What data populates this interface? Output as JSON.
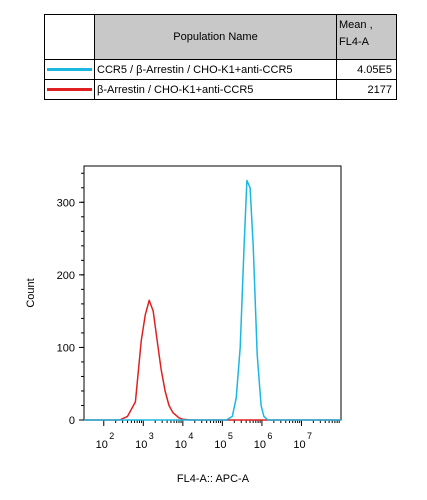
{
  "legend": {
    "header_name": "Population Name",
    "header_mean": "Mean ,",
    "header_mean_2": "FL4-A",
    "rows": [
      {
        "name": "CCR5 / β-Arrestin / CHO-K1+anti-CCR5",
        "mean": "4.05E5",
        "color": "#1ab8e0"
      },
      {
        "name": "β-Arrestin / CHO-K1+anti-CCR5",
        "mean": "2177",
        "color": "#e02020"
      }
    ]
  },
  "chart_data": {
    "type": "line",
    "xlabel": "FL4-A:: APC-A",
    "ylabel": "Count",
    "x_scale": "log",
    "xlim_log10": [
      1.5,
      8.0
    ],
    "ylim": [
      0,
      350
    ],
    "y_ticks": [
      0,
      100,
      200,
      300
    ],
    "x_ticks": [
      {
        "base": "10",
        "exp": "2"
      },
      {
        "base": "10",
        "exp": "3"
      },
      {
        "base": "10",
        "exp": "4"
      },
      {
        "base": "10",
        "exp": "5"
      },
      {
        "base": "10",
        "exp": "6"
      },
      {
        "base": "10",
        "exp": "7"
      }
    ],
    "x_tick_log10": [
      2,
      3,
      4,
      5,
      6,
      7
    ],
    "series": [
      {
        "name": "β-Arrestin / CHO-K1+anti-CCR5",
        "color": "#e02020",
        "x_log10": [
          1.5,
          2.4,
          2.6,
          2.8,
          2.95,
          3.05,
          3.15,
          3.25,
          3.35,
          3.45,
          3.55,
          3.65,
          3.75,
          3.9,
          4.0,
          4.2,
          8.0
        ],
        "y": [
          0,
          0,
          5,
          25,
          110,
          145,
          165,
          150,
          110,
          70,
          40,
          20,
          10,
          3,
          1,
          0,
          0
        ]
      },
      {
        "name": "CCR5 / β-Arrestin / CHO-K1+anti-CCR5",
        "color": "#1ab8e0",
        "x_log10": [
          1.5,
          5.1,
          5.25,
          5.35,
          5.45,
          5.55,
          5.62,
          5.7,
          5.78,
          5.88,
          5.98,
          6.05,
          6.15,
          8.0
        ],
        "y": [
          0,
          0,
          5,
          30,
          100,
          240,
          330,
          320,
          240,
          90,
          20,
          5,
          0,
          0
        ]
      }
    ]
  }
}
